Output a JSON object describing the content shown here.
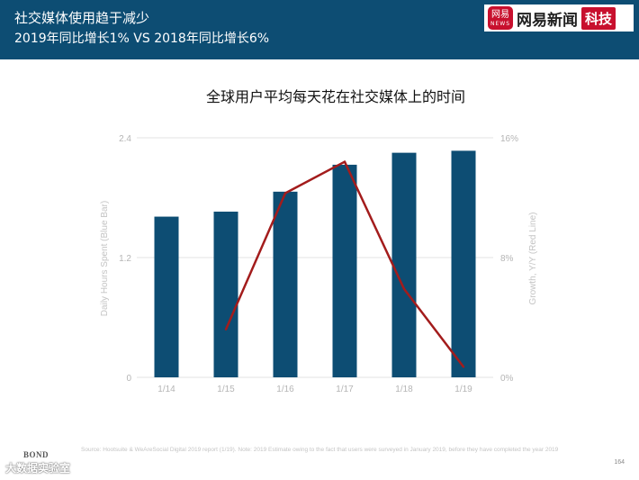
{
  "header": {
    "title": "社交媒体使用趋于减少",
    "subtitle": "2019年同比增长1% VS 2018年同比增长6%"
  },
  "brand": {
    "logo_text": "网易",
    "logo_small": "NEWS",
    "name": "网易新闻",
    "tag": "科技"
  },
  "chart_data": {
    "type": "bar",
    "title": "全球用户平均每天花在社交媒体上的时间",
    "categories": [
      "1/14",
      "1/15",
      "1/16",
      "1/17",
      "1/18",
      "1/19"
    ],
    "series": [
      {
        "name": "Daily Hours Spent",
        "type": "bar",
        "axis": "left",
        "color": "#0d4d73",
        "values": [
          1.61,
          1.66,
          1.86,
          2.13,
          2.25,
          2.27
        ]
      },
      {
        "name": "Growth, Y/Y",
        "type": "line",
        "axis": "right",
        "color": "#a31c1c",
        "values": [
          null,
          3.2,
          12.3,
          14.4,
          5.9,
          0.7
        ]
      }
    ],
    "ylabel": "Daily Hours Spent (Blue Bar)",
    "ylabel_right": "Growth, Y/Y (Red Line)",
    "ylim": [
      0,
      2.4
    ],
    "ylim_right": [
      0,
      16
    ],
    "yticks": [
      "0",
      "1.2",
      "2.4"
    ],
    "yticks_right": [
      "0%",
      "8%",
      "16%"
    ],
    "grid": true
  },
  "footer": {
    "source": "Source: Hootsuite & WeAreSocial Digital 2019 report (1/19). Note: 2019 Estimate owing to the fact that users were surveyed in January 2019, before they have completed the year 2019",
    "page": "164",
    "bond": "BOND",
    "watermark": "大数据实验室"
  }
}
